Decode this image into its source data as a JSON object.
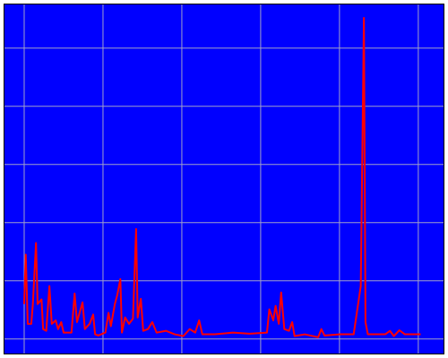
{
  "chart_data": {
    "type": "line",
    "background": "#0000ff",
    "grid": true,
    "grid_color": "#a0a0c8",
    "xlim": [
      -0.25,
      5.32
    ],
    "ylim": [
      -0.25,
      5.75
    ],
    "xticks": [
      0,
      1,
      2,
      3,
      4,
      5
    ],
    "yticks": [
      0,
      1,
      2,
      3,
      4,
      5
    ],
    "series": [
      {
        "color": "#ff0000",
        "x": [
          0,
          0.02,
          0.045,
          0.09,
          0.11,
          0.15,
          0.17,
          0.22,
          0.24,
          0.28,
          0.32,
          0.35,
          0.4,
          0.43,
          0.47,
          0.5,
          0.6,
          0.64,
          0.67,
          0.74,
          0.77,
          0.83,
          0.875,
          0.9,
          0.94,
          1.03,
          1.07,
          1.1,
          1.15,
          1.18,
          1.22,
          1.24,
          1.28,
          1.33,
          1.38,
          1.42,
          1.44,
          1.48,
          1.51,
          1.57,
          1.625,
          1.68,
          1.8,
          1.91,
          2.02,
          2.1,
          2.17,
          2.22,
          2.26,
          2.42,
          2.65,
          2.86,
          3.08,
          3.11,
          3.16,
          3.19,
          3.23,
          3.26,
          3.3,
          3.36,
          3.4,
          3.43,
          3.56,
          3.73,
          3.77,
          3.81,
          4.01,
          4.18,
          4.27,
          4.31,
          4.33,
          4.36,
          4.58,
          4.64,
          4.69,
          4.76,
          4.83,
          5.03
        ],
        "values": [
          0.6,
          1.45,
          0.26,
          0.26,
          0.6,
          1.65,
          0.6,
          0.68,
          0.17,
          0.14,
          0.91,
          0.26,
          0.32,
          0.17,
          0.29,
          0.11,
          0.11,
          0.78,
          0.29,
          0.63,
          0.17,
          0.26,
          0.42,
          0.08,
          0.06,
          0.11,
          0.45,
          0.22,
          0.6,
          0.75,
          1.03,
          0.11,
          0.37,
          0.26,
          0.35,
          1.89,
          0.37,
          0.69,
          0.14,
          0.17,
          0.29,
          0.11,
          0.14,
          0.08,
          0.05,
          0.17,
          0.11,
          0.32,
          0.08,
          0.08,
          0.11,
          0.09,
          0.11,
          0.51,
          0.32,
          0.57,
          0.26,
          0.8,
          0.17,
          0.14,
          0.29,
          0.05,
          0.08,
          0.03,
          0.17,
          0.06,
          0.08,
          0.08,
          0.91,
          5.52,
          0.29,
          0.08,
          0.08,
          0.14,
          0.05,
          0.15,
          0.08,
          0.08
        ]
      }
    ]
  }
}
